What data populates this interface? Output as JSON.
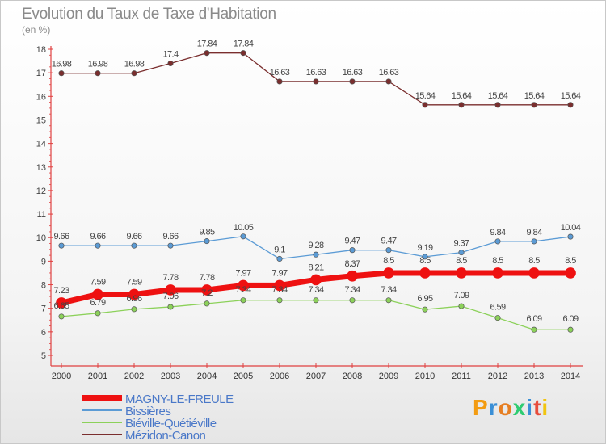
{
  "header": {
    "title": "Evolution du Taux de Taxe d'Habitation",
    "subtitle": "(en %)"
  },
  "brand": {
    "logo": "Proxiti",
    "letter_colors": [
      "#f39c12",
      "#3a8fd6",
      "#e67e22",
      "#2ecc71",
      "#3a8fd6",
      "#e74c3c",
      "#f1c40f"
    ]
  },
  "chart_data": {
    "type": "line",
    "x": [
      "2000",
      "2001",
      "2002",
      "2003",
      "2004",
      "2005",
      "2006",
      "2007",
      "2008",
      "2009",
      "2010",
      "2011",
      "2012",
      "2013",
      "2014"
    ],
    "ylim": [
      5,
      18
    ],
    "yticks": [
      5,
      6,
      7,
      8,
      9,
      10,
      11,
      12,
      13,
      14,
      15,
      16,
      17,
      18
    ],
    "grid": false,
    "legend_position": "bottom-left",
    "series": [
      {
        "name": "Mézidon-Canon",
        "color": "#7a2e2e",
        "values": [
          16.98,
          16.98,
          16.98,
          17.4,
          17.84,
          17.84,
          16.63,
          16.63,
          16.63,
          16.63,
          15.64,
          15.64,
          15.64,
          15.64,
          15.64
        ],
        "labels": [
          "16.98",
          "16.98",
          "16.98",
          "17.4",
          "17.84",
          "17.84",
          "16.63",
          "16.63",
          "16.63",
          "16.63",
          "15.64",
          "15.64",
          "15.64",
          "15.64",
          "15.64"
        ]
      },
      {
        "name": "Bissières",
        "color": "#5b9bd5",
        "values": [
          9.66,
          9.66,
          9.66,
          9.66,
          9.85,
          10.05,
          9.1,
          9.28,
          9.47,
          9.47,
          9.19,
          9.37,
          9.84,
          9.84,
          10.04
        ],
        "labels": [
          "9.66",
          "9.66",
          "9.66",
          "9.66",
          "9.85",
          "10.05",
          "9.1",
          "9.28",
          "9.47",
          "9.47",
          "9.19",
          "9.37",
          "9.84",
          "9.84",
          "10.04"
        ]
      },
      {
        "name": "MAGNY-LE-FREULE",
        "color": "#ee1111",
        "values": [
          7.23,
          7.59,
          7.59,
          7.78,
          7.78,
          7.97,
          7.97,
          8.21,
          8.37,
          8.5,
          8.5,
          8.5,
          8.5,
          8.5,
          8.5
        ],
        "labels": [
          "7.23",
          "7.59",
          "7.59",
          "7.78",
          "7.78",
          "7.97",
          "7.97",
          "8.21",
          "8.37",
          "8.5",
          "8.5",
          "8.5",
          "8.5",
          "8.5",
          "8.5"
        ]
      },
      {
        "name": "Biéville-Quétiéville",
        "color": "#8cd15a",
        "values": [
          6.65,
          6.79,
          6.96,
          7.06,
          7.2,
          7.34,
          7.34,
          7.34,
          7.34,
          7.34,
          6.95,
          7.09,
          6.59,
          6.09,
          6.09
        ],
        "labels": [
          "6.65",
          "6.79",
          "6.96",
          "7.06",
          "7.2",
          "7.34",
          "7.34",
          "7.34",
          "7.34",
          "7.34",
          "6.95",
          "7.09",
          "6.59",
          "6.09",
          "6.09"
        ]
      }
    ],
    "legend_order": [
      "MAGNY-LE-FREULE",
      "Bissières",
      "Biéville-Quétiéville",
      "Mézidon-Canon"
    ]
  }
}
